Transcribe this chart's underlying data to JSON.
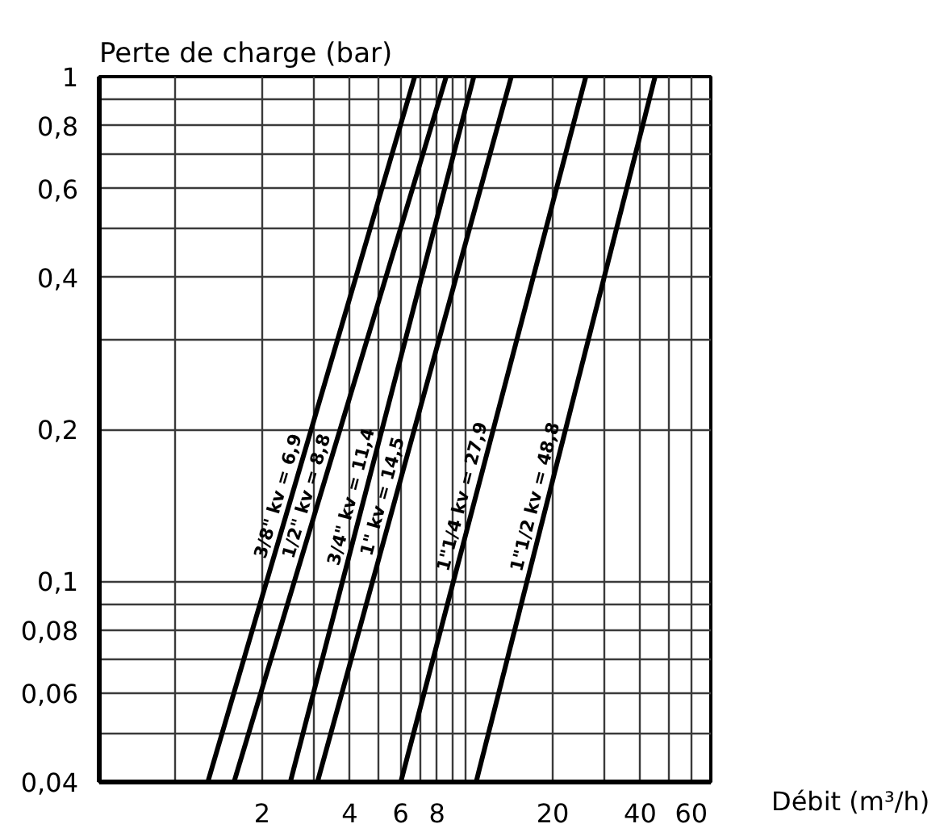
{
  "chart_data": {
    "type": "line",
    "xlabel": "Débit (m³/h)",
    "ylabel": "Perte de charge (bar)",
    "log": "xy",
    "grid": true,
    "xlim": [
      0.55,
      70
    ],
    "ylim": [
      0.04,
      1
    ],
    "xticks": [
      {
        "value": 1,
        "label": null
      },
      2,
      {
        "value": 3,
        "label": null
      },
      4,
      {
        "value": 5,
        "label": null
      },
      6,
      {
        "value": 7,
        "label": null
      },
      8,
      {
        "value": 9,
        "label": null
      },
      {
        "value": 10,
        "label": null
      },
      20,
      {
        "value": 30,
        "label": null
      },
      40,
      {
        "value": 50,
        "label": null
      },
      60
    ],
    "yticks": [
      {
        "value": 0.04,
        "label": "0,04"
      },
      {
        "value": 0.05,
        "label": null
      },
      {
        "value": 0.06,
        "label": "0,06"
      },
      {
        "value": 0.07,
        "label": null
      },
      {
        "value": 0.08,
        "label": "0,08"
      },
      {
        "value": 0.09,
        "label": null
      },
      {
        "value": 0.1,
        "label": "0,1"
      },
      {
        "value": 0.2,
        "label": "0,2"
      },
      {
        "value": 0.3,
        "label": null
      },
      {
        "value": 0.4,
        "label": "0,4"
      },
      {
        "value": 0.5,
        "label": null
      },
      {
        "value": 0.6,
        "label": "0,6"
      },
      {
        "value": 0.7,
        "label": null
      },
      {
        "value": 0.8,
        "label": "0,8"
      },
      {
        "value": 0.9,
        "label": null
      },
      1
    ],
    "series": [
      {
        "name": "3/8\" kv = 6,9",
        "color": "#000000",
        "x": [
          1.3,
          6.7
        ],
        "values": [
          0.04,
          1
        ]
      },
      {
        "name": "1/2\" kv = 8,8",
        "color": "#000000",
        "x": [
          1.6,
          8.6
        ],
        "values": [
          0.04,
          1
        ]
      },
      {
        "name": "3/4\" kv = 11,4",
        "color": "#000000",
        "x": [
          2.5,
          10.7
        ],
        "values": [
          0.04,
          1
        ]
      },
      {
        "name": "1\" kv = 14,5",
        "color": "#000000",
        "x": [
          3.1,
          14.4
        ],
        "values": [
          0.04,
          1
        ]
      },
      {
        "name": "1\"1/4 kv = 27,9",
        "color": "#000000",
        "x": [
          6.0,
          26
        ],
        "values": [
          0.04,
          1
        ]
      },
      {
        "name": "1\"1/2 kv = 48,8",
        "color": "#000000",
        "x": [
          10.9,
          45
        ],
        "values": [
          0.04,
          1
        ]
      }
    ]
  }
}
